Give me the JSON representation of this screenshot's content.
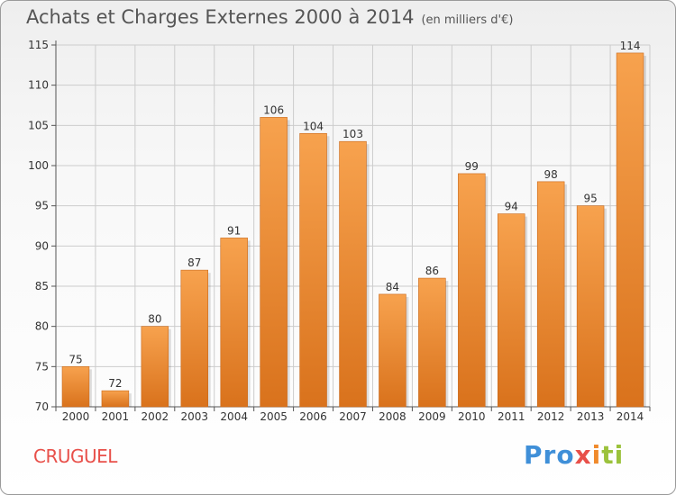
{
  "header": {
    "title": "Achats et Charges Externes 2000 à 2014",
    "subtitle": "(en milliers d'€)"
  },
  "footer": {
    "town": "CRUGUEL",
    "logo_parts": [
      "Pro",
      "x",
      "i",
      "ti"
    ]
  },
  "colors": {
    "bar_top": "#f7a24e",
    "bar_bottom": "#d9721c",
    "grid": "#cccccc",
    "town": "#e8504a"
  },
  "chart_data": {
    "type": "bar",
    "title": "Achats et Charges Externes 2000 à 2014",
    "subtitle": "(en milliers d'€)",
    "categories": [
      "2000",
      "2001",
      "2002",
      "2003",
      "2004",
      "2005",
      "2006",
      "2007",
      "2008",
      "2009",
      "2010",
      "2011",
      "2012",
      "2013",
      "2014"
    ],
    "values": [
      75,
      72,
      80,
      87,
      91,
      106,
      104,
      103,
      84,
      86,
      99,
      94,
      98,
      95,
      114
    ],
    "ylim": [
      70,
      115
    ],
    "yticks": [
      70,
      75,
      80,
      85,
      90,
      95,
      100,
      105,
      110,
      115
    ],
    "grid": true,
    "legend": "none"
  }
}
